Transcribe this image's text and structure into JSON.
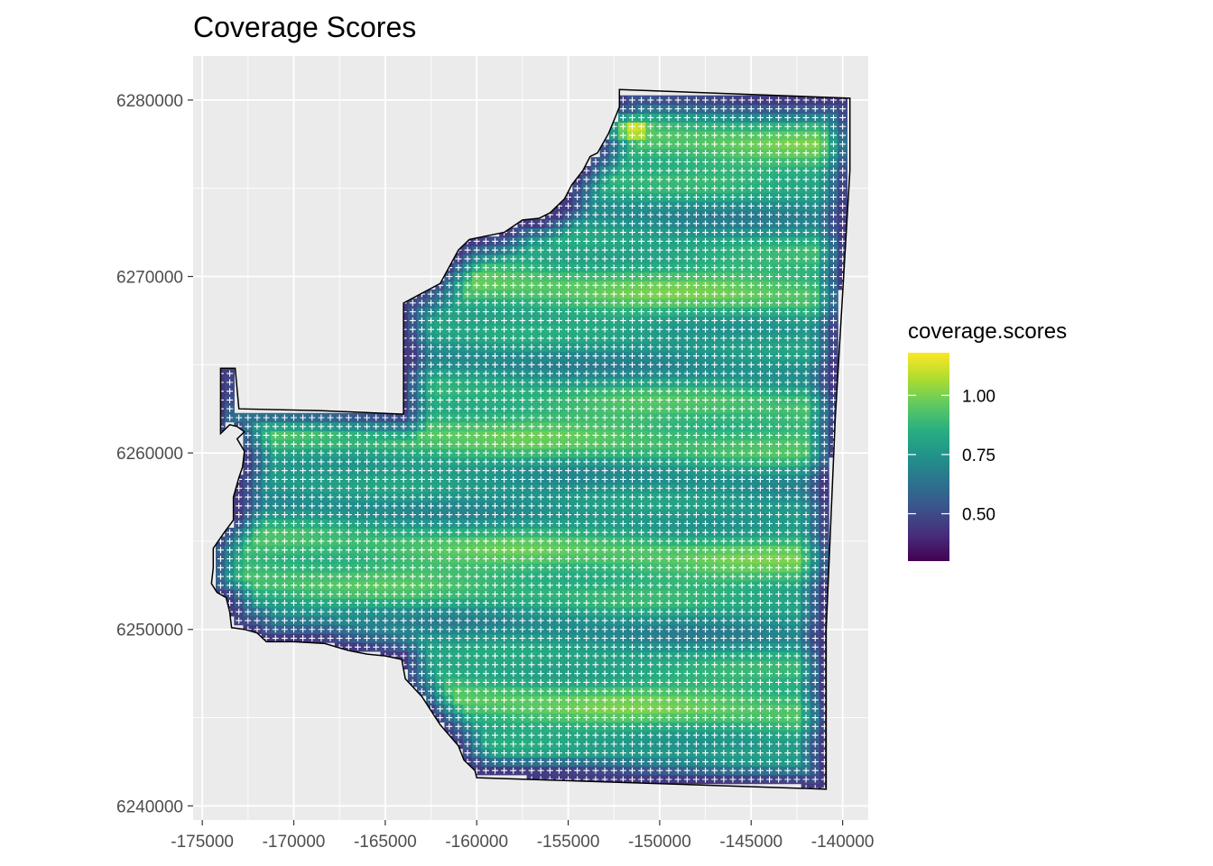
{
  "chart_data": {
    "type": "heatmap",
    "title": "Coverage Scores",
    "xlabel": "",
    "ylabel": "",
    "xlim": [
      -175500,
      -138600
    ],
    "ylim": [
      6239200,
      6282500
    ],
    "x_ticks": [
      -175000,
      -170000,
      -165000,
      -160000,
      -155000,
      -150000,
      -145000,
      -140000
    ],
    "x_tick_labels": [
      "-175000",
      "-170000",
      "-165000",
      "-160000",
      "-155000",
      "-150000",
      "-145000",
      "-140000"
    ],
    "y_ticks": [
      6240000,
      6250000,
      6260000,
      6270000,
      6280000
    ],
    "y_tick_labels": [
      "6240000",
      "6250000",
      "6260000",
      "6270000",
      "6280000"
    ],
    "grid": true,
    "grid_spacing": 500,
    "legend": {
      "title": "coverage.scores",
      "position": "right",
      "range": [
        0.3,
        1.18
      ],
      "breaks": [
        0.5,
        0.75,
        1.0
      ],
      "break_labels": [
        "0.50",
        "0.75",
        "1.00"
      ],
      "colormap": "viridis"
    },
    "boundary": [
      [
        -152200,
        6280600
      ],
      [
        -139600,
        6280100
      ],
      [
        -139600,
        6276000
      ],
      [
        -140400,
        6262000
      ],
      [
        -140900,
        6250000
      ],
      [
        -140900,
        6240950
      ],
      [
        -160000,
        6241600
      ],
      [
        -160100,
        6242000
      ],
      [
        -160700,
        6242600
      ],
      [
        -161000,
        6243400
      ],
      [
        -162000,
        6244600
      ],
      [
        -163000,
        6246200
      ],
      [
        -163900,
        6247200
      ],
      [
        -164100,
        6248300
      ],
      [
        -165000,
        6248500
      ],
      [
        -166000,
        6248600
      ],
      [
        -167000,
        6248800
      ],
      [
        -168300,
        6249200
      ],
      [
        -170000,
        6249300
      ],
      [
        -171500,
        6249300
      ],
      [
        -172000,
        6249800
      ],
      [
        -172700,
        6250000
      ],
      [
        -173400,
        6250100
      ],
      [
        -173500,
        6251000
      ],
      [
        -173700,
        6251800
      ],
      [
        -174200,
        6252100
      ],
      [
        -174500,
        6252600
      ],
      [
        -174400,
        6253500
      ],
      [
        -174400,
        6254600
      ],
      [
        -173800,
        6255500
      ],
      [
        -173300,
        6256200
      ],
      [
        -173300,
        6257500
      ],
      [
        -173000,
        6258600
      ],
      [
        -172800,
        6259200
      ],
      [
        -172700,
        6260100
      ],
      [
        -173100,
        6260800
      ],
      [
        -172700,
        6261200
      ],
      [
        -173100,
        6261500
      ],
      [
        -173500,
        6261600
      ],
      [
        -173800,
        6261300
      ],
      [
        -174000,
        6261100
      ],
      [
        -174000,
        6263200
      ],
      [
        -174000,
        6264800
      ],
      [
        -173200,
        6264800
      ],
      [
        -173000,
        6262500
      ],
      [
        -168500,
        6262400
      ],
      [
        -164000,
        6262200
      ],
      [
        -164000,
        6268500
      ],
      [
        -162000,
        6269600
      ],
      [
        -161000,
        6271500
      ],
      [
        -160400,
        6272100
      ],
      [
        -158500,
        6272500
      ],
      [
        -157500,
        6273200
      ],
      [
        -156600,
        6273300
      ],
      [
        -156000,
        6273600
      ],
      [
        -155200,
        6274400
      ],
      [
        -154800,
        6275200
      ],
      [
        -154200,
        6276000
      ],
      [
        -153800,
        6276800
      ],
      [
        -153400,
        6277000
      ],
      [
        -152800,
        6278100
      ],
      [
        -152200,
        6279600
      ],
      [
        -152200,
        6280600
      ]
    ]
  }
}
